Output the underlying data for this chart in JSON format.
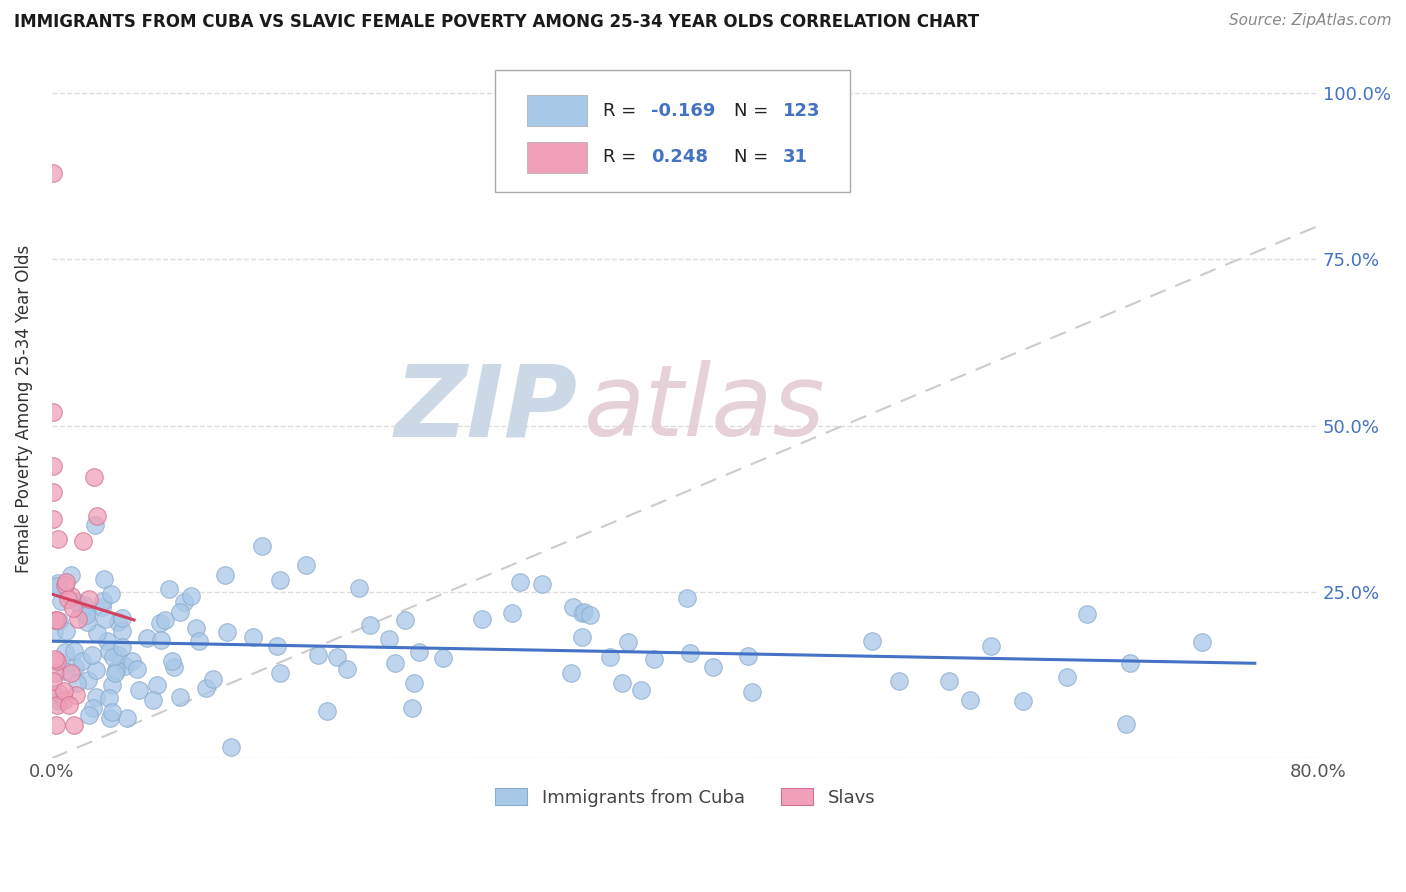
{
  "title": "IMMIGRANTS FROM CUBA VS SLAVIC FEMALE POVERTY AMONG 25-34 YEAR OLDS CORRELATION CHART",
  "source": "Source: ZipAtlas.com",
  "ylabel": "Female Poverty Among 25-34 Year Olds",
  "xlim": [
    0.0,
    0.8
  ],
  "ylim": [
    0.0,
    1.05
  ],
  "xtick_vals": [
    0.0,
    0.8
  ],
  "xtick_labels": [
    "0.0%",
    "80.0%"
  ],
  "ytick_vals": [
    0.0,
    0.25,
    0.5,
    0.75,
    1.0
  ],
  "ytick_labels_right": [
    "",
    "25.0%",
    "50.0%",
    "75.0%",
    "100.0%"
  ],
  "R_cuba": -0.169,
  "N_cuba": 123,
  "R_slavic": 0.248,
  "N_slavic": 31,
  "cuba_color": "#a8c8e8",
  "slavic_color": "#f0a0b8",
  "cuba_edge_color": "#88aacc",
  "slavic_edge_color": "#d07090",
  "cuba_line_color": "#4472c4",
  "slavic_line_color": "#d44060",
  "legend_val_color": "#4472c4",
  "diagonal_color": "#cccccc",
  "grid_color": "#dddddd",
  "watermark_zip_color": "#d0d8e8",
  "watermark_atlas_color": "#d8c8c8",
  "bg_color": "#ffffff"
}
